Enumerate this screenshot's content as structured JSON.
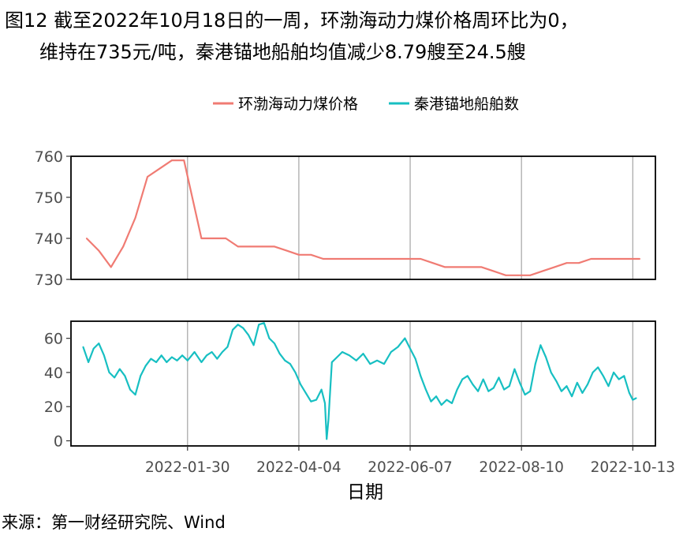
{
  "figure": {
    "title_line1": "图12  截至2022年10月18日的一周，环渤海动力煤价格周环比为0，",
    "title_line2": "维持在735元/吨，秦港锚地船舶均值减少8.79艘至24.5艘",
    "source": "来源：第一财经研究院、Wind"
  },
  "colors": {
    "price": "#F07B73",
    "ships": "#17BFC2",
    "grid": "#ABABAB"
  },
  "chart_data": [
    {
      "type": "line",
      "xlabel": "日期",
      "x_tick_labels": [
        "2022-01-30",
        "2022-04-04",
        "2022-06-07",
        "2022-08-10",
        "2022-10-13"
      ],
      "x_tick_dates": [
        "2022-01-30",
        "2022-04-04",
        "2022-06-07",
        "2022-08-10",
        "2022-10-13"
      ],
      "xlim": [
        "2021-11-24",
        "2022-10-26"
      ],
      "legend_position": "top",
      "panels": [
        {
          "series_name": "环渤海动力煤价格",
          "ylim": [
            730,
            760
          ],
          "y_ticks": [
            730,
            740,
            750,
            760
          ],
          "points": [
            [
              "2021-12-03",
              740
            ],
            [
              "2021-12-10",
              737
            ],
            [
              "2021-12-17",
              733
            ],
            [
              "2021-12-24",
              738
            ],
            [
              "2021-12-31",
              745
            ],
            [
              "2022-01-07",
              755
            ],
            [
              "2022-01-14",
              757
            ],
            [
              "2022-01-21",
              759
            ],
            [
              "2022-01-28",
              759
            ],
            [
              "2022-02-07",
              740
            ],
            [
              "2022-02-14",
              740
            ],
            [
              "2022-02-21",
              740
            ],
            [
              "2022-02-28",
              738
            ],
            [
              "2022-03-07",
              738
            ],
            [
              "2022-03-14",
              738
            ],
            [
              "2022-03-21",
              738
            ],
            [
              "2022-03-28",
              737
            ],
            [
              "2022-04-04",
              736
            ],
            [
              "2022-04-11",
              736
            ],
            [
              "2022-04-18",
              735
            ],
            [
              "2022-04-25",
              735
            ],
            [
              "2022-05-02",
              735
            ],
            [
              "2022-05-09",
              735
            ],
            [
              "2022-05-16",
              735
            ],
            [
              "2022-05-23",
              735
            ],
            [
              "2022-05-30",
              735
            ],
            [
              "2022-06-06",
              735
            ],
            [
              "2022-06-13",
              735
            ],
            [
              "2022-06-20",
              734
            ],
            [
              "2022-06-27",
              733
            ],
            [
              "2022-07-04",
              733
            ],
            [
              "2022-07-11",
              733
            ],
            [
              "2022-07-18",
              733
            ],
            [
              "2022-07-25",
              732
            ],
            [
              "2022-08-01",
              731
            ],
            [
              "2022-08-08",
              731
            ],
            [
              "2022-08-15",
              731
            ],
            [
              "2022-08-22",
              732
            ],
            [
              "2022-08-29",
              733
            ],
            [
              "2022-09-05",
              734
            ],
            [
              "2022-09-12",
              734
            ],
            [
              "2022-09-19",
              735
            ],
            [
              "2022-09-26",
              735
            ],
            [
              "2022-10-03",
              735
            ],
            [
              "2022-10-10",
              735
            ],
            [
              "2022-10-17",
              735
            ]
          ]
        },
        {
          "series_name": "秦港锚地船舶数",
          "ylim": [
            -3,
            70
          ],
          "y_ticks": [
            0,
            20,
            40,
            60
          ],
          "points": [
            [
              "2021-12-01",
              55
            ],
            [
              "2021-12-04",
              46
            ],
            [
              "2021-12-07",
              54
            ],
            [
              "2021-12-10",
              57
            ],
            [
              "2021-12-13",
              50
            ],
            [
              "2021-12-16",
              40
            ],
            [
              "2021-12-19",
              37
            ],
            [
              "2021-12-22",
              42
            ],
            [
              "2021-12-25",
              38
            ],
            [
              "2021-12-28",
              30
            ],
            [
              "2021-12-31",
              27
            ],
            [
              "2022-01-03",
              38
            ],
            [
              "2022-01-06",
              44
            ],
            [
              "2022-01-09",
              48
            ],
            [
              "2022-01-12",
              46
            ],
            [
              "2022-01-15",
              50
            ],
            [
              "2022-01-18",
              46
            ],
            [
              "2022-01-21",
              49
            ],
            [
              "2022-01-24",
              47
            ],
            [
              "2022-01-27",
              50
            ],
            [
              "2022-01-30",
              47
            ],
            [
              "2022-02-03",
              52
            ],
            [
              "2022-02-07",
              46
            ],
            [
              "2022-02-10",
              50
            ],
            [
              "2022-02-13",
              52
            ],
            [
              "2022-02-16",
              48
            ],
            [
              "2022-02-19",
              52
            ],
            [
              "2022-02-22",
              55
            ],
            [
              "2022-02-25",
              65
            ],
            [
              "2022-02-28",
              68
            ],
            [
              "2022-03-03",
              66
            ],
            [
              "2022-03-06",
              62
            ],
            [
              "2022-03-09",
              56
            ],
            [
              "2022-03-12",
              68
            ],
            [
              "2022-03-15",
              69
            ],
            [
              "2022-03-18",
              60
            ],
            [
              "2022-03-21",
              57
            ],
            [
              "2022-03-24",
              51
            ],
            [
              "2022-03-27",
              47
            ],
            [
              "2022-03-30",
              45
            ],
            [
              "2022-04-02",
              40
            ],
            [
              "2022-04-05",
              33
            ],
            [
              "2022-04-08",
              28
            ],
            [
              "2022-04-11",
              23
            ],
            [
              "2022-04-14",
              24
            ],
            [
              "2022-04-17",
              30
            ],
            [
              "2022-04-19",
              22
            ],
            [
              "2022-04-20",
              1
            ],
            [
              "2022-04-21",
              12
            ],
            [
              "2022-04-23",
              46
            ],
            [
              "2022-04-26",
              49
            ],
            [
              "2022-04-29",
              52
            ],
            [
              "2022-05-03",
              50
            ],
            [
              "2022-05-07",
              47
            ],
            [
              "2022-05-11",
              51
            ],
            [
              "2022-05-15",
              45
            ],
            [
              "2022-05-19",
              47
            ],
            [
              "2022-05-23",
              45
            ],
            [
              "2022-05-27",
              52
            ],
            [
              "2022-05-31",
              55
            ],
            [
              "2022-06-04",
              60
            ],
            [
              "2022-06-07",
              54
            ],
            [
              "2022-06-10",
              48
            ],
            [
              "2022-06-13",
              38
            ],
            [
              "2022-06-16",
              30
            ],
            [
              "2022-06-19",
              23
            ],
            [
              "2022-06-22",
              26
            ],
            [
              "2022-06-25",
              21
            ],
            [
              "2022-06-28",
              24
            ],
            [
              "2022-07-01",
              22
            ],
            [
              "2022-07-04",
              30
            ],
            [
              "2022-07-07",
              36
            ],
            [
              "2022-07-10",
              38
            ],
            [
              "2022-07-13",
              33
            ],
            [
              "2022-07-16",
              29
            ],
            [
              "2022-07-19",
              36
            ],
            [
              "2022-07-22",
              29
            ],
            [
              "2022-07-25",
              31
            ],
            [
              "2022-07-28",
              37
            ],
            [
              "2022-07-31",
              30
            ],
            [
              "2022-08-03",
              32
            ],
            [
              "2022-08-06",
              42
            ],
            [
              "2022-08-09",
              34
            ],
            [
              "2022-08-12",
              27
            ],
            [
              "2022-08-15",
              29
            ],
            [
              "2022-08-18",
              45
            ],
            [
              "2022-08-21",
              56
            ],
            [
              "2022-08-24",
              49
            ],
            [
              "2022-08-27",
              40
            ],
            [
              "2022-08-30",
              35
            ],
            [
              "2022-09-02",
              29
            ],
            [
              "2022-09-05",
              32
            ],
            [
              "2022-09-08",
              26
            ],
            [
              "2022-09-11",
              34
            ],
            [
              "2022-09-14",
              28
            ],
            [
              "2022-09-17",
              33
            ],
            [
              "2022-09-20",
              40
            ],
            [
              "2022-09-23",
              43
            ],
            [
              "2022-09-26",
              38
            ],
            [
              "2022-09-29",
              32
            ],
            [
              "2022-10-02",
              40
            ],
            [
              "2022-10-05",
              36
            ],
            [
              "2022-10-08",
              38
            ],
            [
              "2022-10-11",
              28
            ],
            [
              "2022-10-13",
              24
            ],
            [
              "2022-10-15",
              25
            ]
          ]
        }
      ]
    }
  ]
}
